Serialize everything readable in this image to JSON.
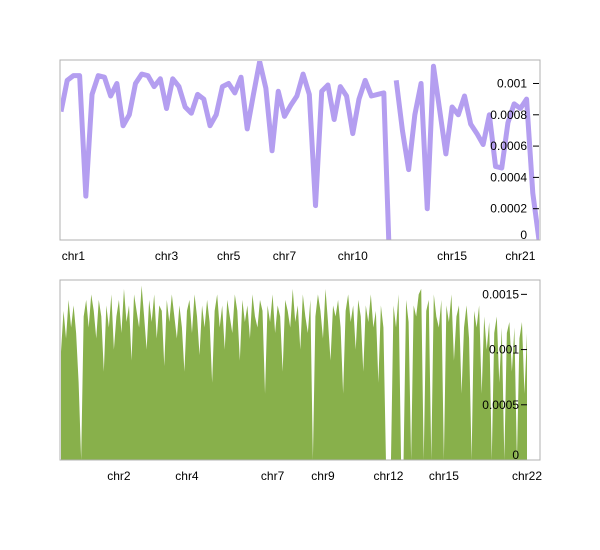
{
  "chart_data": [
    {
      "type": "line",
      "color": "#b49ef0",
      "ylim": [
        0,
        0.00115
      ],
      "yticks": [
        {
          "value": 0,
          "label": "0"
        },
        {
          "value": 0.0002,
          "label": "0.0002"
        },
        {
          "value": 0.0004,
          "label": "0.0004"
        },
        {
          "value": 0.0006,
          "label": "0.0006"
        },
        {
          "value": 0.0008,
          "label": "0.0008"
        },
        {
          "value": 0.001,
          "label": "0.001"
        }
      ],
      "xticks": [
        {
          "index": 2,
          "label": "chr1"
        },
        {
          "index": 17,
          "label": "chr3"
        },
        {
          "index": 27,
          "label": "chr5"
        },
        {
          "index": 36,
          "label": "chr7"
        },
        {
          "index": 47,
          "label": "chr10"
        },
        {
          "index": 63,
          "label": "chr15"
        },
        {
          "index": 74,
          "label": "chr21"
        }
      ],
      "series": [
        {
          "values": [
            0.00082,
            0.00102,
            0.00105,
            0.00105,
            0.00028,
            0.00093,
            0.00105,
            0.00104,
            0.00092,
            0.001,
            0.00073,
            0.0008,
            0.001,
            0.00106,
            0.00105,
            0.00098,
            0.00103,
            0.00084,
            0.00103,
            0.00098,
            0.00085,
            0.00081,
            0.00093,
            0.0009,
            0.00073,
            0.0008,
            0.00098,
            0.001,
            0.00094,
            0.00104,
            0.00071,
            0.00093,
            0.00114,
            0.00097,
            0.00057,
            0.00095,
            0.00079,
            0.00086,
            0.00092,
            0.00106,
            0.00093,
            0.00022,
            0.00095,
            0.00099,
            0.00077,
            0.00098,
            0.00092,
            0.00068,
            0.0009,
            0.00102,
            0.00092,
            0.00093,
            0.00094,
            null,
            0.00102,
            0.0007,
            0.00045,
            0.0008,
            0.001,
            0.0002,
            0.00111,
            0.00083,
            0.00055,
            0.00085,
            0.0008,
            0.00092,
            0.00074,
            0.00068,
            0.00061,
            0.0008,
            0.00047,
            0.00046,
            0.00075,
            0.00087,
            0.00084,
            0.0009,
            0.0003,
            0.0
          ]
        }
      ]
    },
    {
      "type": "area",
      "color": "#88b04b",
      "ylim": [
        0,
        0.00163
      ],
      "yticks": [
        {
          "value": 0,
          "label": "0"
        },
        {
          "value": 0.0005,
          "label": "0.0005"
        },
        {
          "value": 0.001,
          "label": "0.001"
        },
        {
          "value": 0.0015,
          "label": "0.0015"
        }
      ],
      "xticks": [
        {
          "index": 23,
          "label": "chr2"
        },
        {
          "index": 50,
          "label": "chr4"
        },
        {
          "index": 84,
          "label": "chr7"
        },
        {
          "index": 104,
          "label": "chr9"
        },
        {
          "index": 130,
          "label": "chr12"
        },
        {
          "index": 152,
          "label": "chr15"
        },
        {
          "index": 185,
          "label": "chr22"
        }
      ],
      "series": [
        {
          "values": [
            0.00098,
            0.00135,
            0.0011,
            0.00145,
            0.0012,
            0.0014,
            0.00115,
            0.0007,
            0.0,
            0.0013,
            0.00145,
            0.0012,
            0.0015,
            0.00135,
            0.0011,
            0.00145,
            0.0013,
            0.0008,
            0.0014,
            0.0012,
            0.0015,
            0.001,
            0.0013,
            0.00145,
            0.00115,
            0.00155,
            0.00125,
            0.0014,
            0.0009,
            0.0015,
            0.00135,
            0.0012,
            0.00158,
            0.0013,
            0.001,
            0.00145,
            0.00125,
            0.0015,
            0.0011,
            0.0014,
            0.00135,
            0.00085,
            0.00145,
            0.00125,
            0.0015,
            0.0013,
            0.0011,
            0.0014,
            0.0012,
            0.0008,
            0.00135,
            0.00145,
            0.00115,
            0.0015,
            0.0013,
            0.00095,
            0.0014,
            0.0012,
            0.00145,
            0.00125,
            0.0007,
            0.00135,
            0.0015,
            0.0012,
            0.0014,
            0.001,
            0.00145,
            0.0013,
            0.00115,
            0.0015,
            0.00135,
            0.0009,
            0.00145,
            0.00125,
            0.0014,
            0.0011,
            0.0015,
            0.0013,
            0.0012,
            0.00145,
            0.00135,
            0.0006,
            0.0014,
            0.00125,
            0.0015,
            0.00115,
            0.0014,
            0.0013,
            0.0008,
            0.00145,
            0.00135,
            0.0012,
            0.00155,
            0.00125,
            0.0014,
            0.001,
            0.0015,
            0.0013,
            0.00115,
            0.00145,
            0.0,
            0.0013,
            0.0015,
            0.00135,
            0.0011,
            0.00155,
            0.00125,
            0.0009,
            0.0014,
            0.0013,
            0.00145,
            0.0012,
            0.0006,
            0.00135,
            0.0015,
            0.00125,
            0.0014,
            0.001,
            0.00145,
            0.0013,
            0.0008,
            0.0014,
            0.00125,
            0.0015,
            0.0012,
            0.00135,
            0.0007,
            0.0014,
            0.0012,
            0.0,
            0.0,
            0.0,
            0.0014,
            0.0012,
            0.0015,
            0.0,
            0.0,
            0.00145,
            0.00125,
            0.0,
            0.0014,
            0.0013,
            0.0015,
            0.00155,
            0.0,
            0.00135,
            0.00145,
            0.0,
            0.0015,
            0.0013,
            0.0012,
            0.00145,
            0.0,
            0.0014,
            0.00125,
            0.0015,
            0.0009,
            0.0013,
            0.0014,
            0.0006,
            0.0012,
            0.0014,
            0.0011,
            0.0,
            0.00135,
            0.0012,
            0.0014,
            0.0006,
            0.0013,
            0.001,
            0.00125,
            0.0,
            0.00115,
            0.0013,
            0.0007,
            0.0012,
            0.0,
            0.00115,
            0.00125,
            0.0008,
            0.0012,
            0.0,
            0.0011,
            0.00125,
            0.0006,
            0.00115
          ]
        }
      ]
    }
  ]
}
